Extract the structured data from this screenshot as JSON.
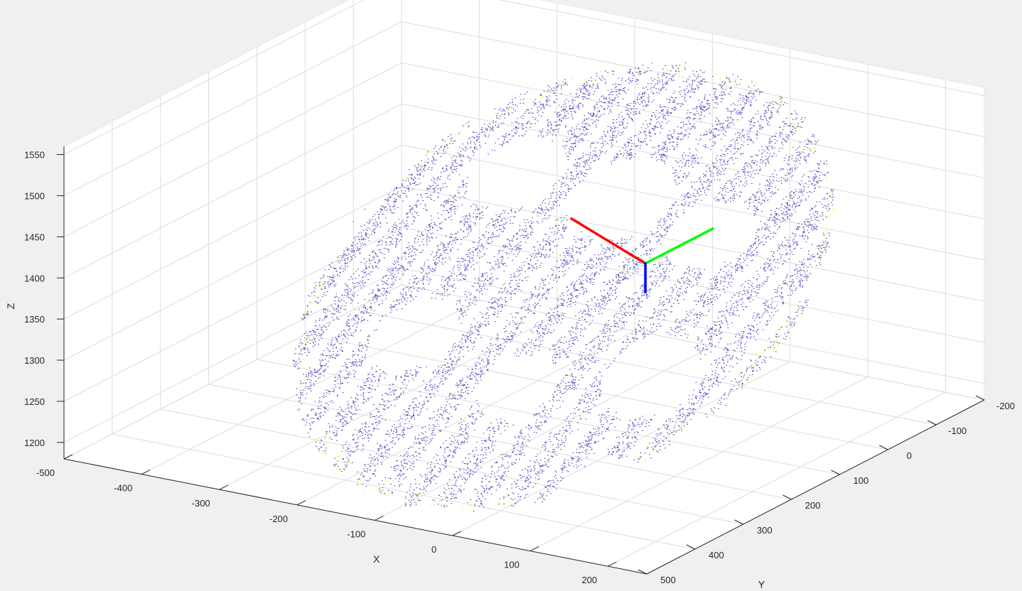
{
  "chart_data": {
    "type": "scatter",
    "subtype": "3d-point-cloud",
    "title": "",
    "xlabel": "X",
    "ylabel": "Y",
    "zlabel": "Z",
    "xlim": [
      -500,
      250
    ],
    "ylim": [
      -200,
      500
    ],
    "zlim": [
      1180,
      1560
    ],
    "x_ticks": [
      "-500",
      "-400",
      "-300",
      "-200",
      "-100",
      "0",
      "100",
      "200"
    ],
    "y_ticks": [
      "-200",
      "-100",
      "0",
      "100",
      "200",
      "300",
      "400",
      "500"
    ],
    "z_ticks": [
      "1200",
      "1250",
      "1300",
      "1350",
      "1400",
      "1450",
      "1500",
      "1550"
    ],
    "grid": true,
    "background_color": "#f0f0f0",
    "plot_background": "#ffffff",
    "series": [
      {
        "color": "#4b44b8",
        "description_values": "dense point cloud roughly spanning x -350..200, y -150..450, z 1200..1540"
      },
      {
        "color": "#f2f03c",
        "description_values": "sparse rim points at cloud boundary"
      }
    ],
    "coordinate_frame": {
      "origin": [
        0,
        100,
        1390
      ],
      "axes": [
        {
          "name": "x",
          "color": "#ff0000"
        },
        {
          "name": "y",
          "color": "#00ff00"
        },
        {
          "name": "z",
          "color": "#0000ff"
        }
      ]
    }
  }
}
